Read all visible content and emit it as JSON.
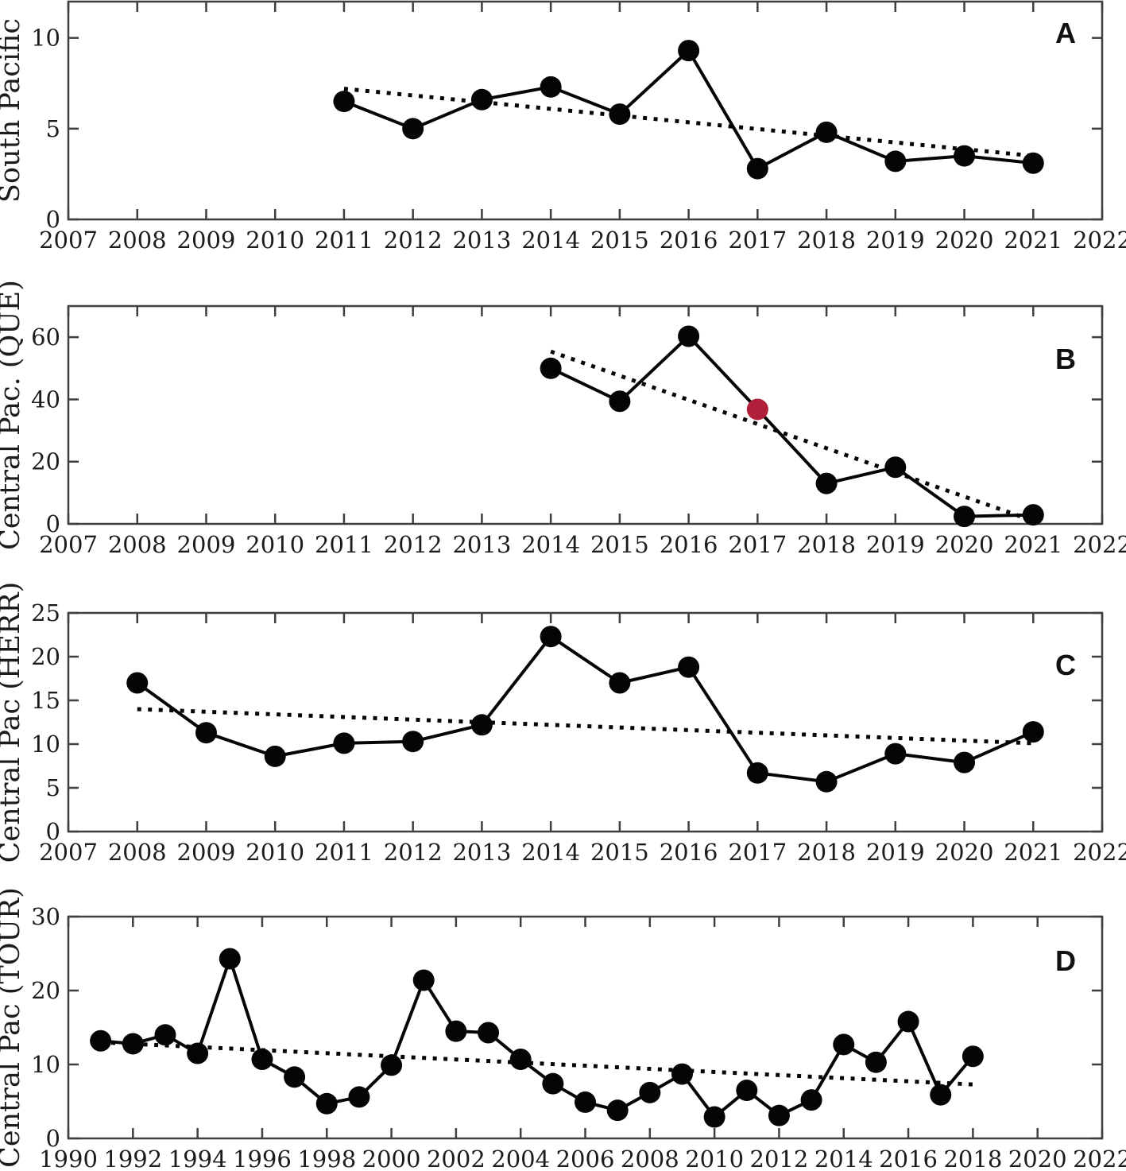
{
  "figure": {
    "background": "#ffffff",
    "axis_color": "#3f3f3f",
    "text_color": "#1c1c1c",
    "series_color": "#050505",
    "trend_color": "#050505",
    "highlight_color": "#B21F3A"
  },
  "chart_data": [
    {
      "type": "line",
      "panel_label": "A",
      "ylabel": "South Pacific",
      "xlabel": "",
      "xlim": [
        2007,
        2022
      ],
      "ylim": [
        0,
        12
      ],
      "xticks": [
        2007,
        2008,
        2009,
        2010,
        2011,
        2012,
        2013,
        2014,
        2015,
        2016,
        2017,
        2018,
        2019,
        2020,
        2021,
        2022
      ],
      "yticks": [
        0,
        5,
        10
      ],
      "grid": false,
      "x": [
        2011,
        2012,
        2013,
        2014,
        2015,
        2016,
        2017,
        2018,
        2019,
        2020,
        2021
      ],
      "values": [
        6.5,
        5.0,
        6.6,
        7.3,
        5.8,
        9.3,
        2.8,
        4.8,
        3.2,
        3.5,
        3.1
      ],
      "trend": {
        "style": "dotted",
        "x": [
          2011,
          2021
        ],
        "y": [
          7.2,
          3.5
        ]
      },
      "highlight_point": null
    },
    {
      "type": "line",
      "panel_label": "B",
      "ylabel": "Central Pac. (QUE)",
      "xlabel": "",
      "xlim": [
        2007,
        2022
      ],
      "ylim": [
        0,
        70
      ],
      "xticks": [
        2007,
        2008,
        2009,
        2010,
        2011,
        2012,
        2013,
        2014,
        2015,
        2016,
        2017,
        2018,
        2019,
        2020,
        2021,
        2022
      ],
      "yticks": [
        0,
        20,
        40,
        60
      ],
      "grid": false,
      "x": [
        2014,
        2015,
        2016,
        2017,
        2018,
        2019,
        2020,
        2021
      ],
      "values": [
        50.0,
        39.4,
        60.3,
        36.8,
        13.0,
        18.2,
        2.4,
        2.9
      ],
      "trend": {
        "style": "dotted",
        "x": [
          2014,
          2021
        ],
        "y": [
          55.4,
          1.0
        ]
      },
      "highlight_point": {
        "x": 2017,
        "y": 36.8
      }
    },
    {
      "type": "line",
      "panel_label": "C",
      "ylabel": "Central Pac (HERR)",
      "xlabel": "",
      "xlim": [
        2007,
        2022
      ],
      "ylim": [
        0,
        25
      ],
      "xticks": [
        2007,
        2008,
        2009,
        2010,
        2011,
        2012,
        2013,
        2014,
        2015,
        2016,
        2017,
        2018,
        2019,
        2020,
        2021,
        2022
      ],
      "yticks": [
        0,
        5,
        10,
        15,
        20,
        25
      ],
      "grid": false,
      "x": [
        2008,
        2009,
        2010,
        2011,
        2012,
        2013,
        2014,
        2015,
        2016,
        2017,
        2018,
        2019,
        2020,
        2021
      ],
      "values": [
        17.0,
        11.3,
        8.6,
        10.1,
        10.3,
        12.2,
        22.3,
        17.0,
        18.8,
        6.7,
        5.7,
        8.9,
        7.9,
        11.4
      ],
      "trend": {
        "style": "dotted",
        "x": [
          2008,
          2021
        ],
        "y": [
          14.0,
          10.1
        ]
      },
      "highlight_point": null
    },
    {
      "type": "line",
      "panel_label": "D",
      "ylabel": "Central Pac (TOUR)",
      "xlabel": "",
      "xlim": [
        1990,
        2022
      ],
      "ylim": [
        0,
        30
      ],
      "xticks": [
        1990,
        1992,
        1994,
        1996,
        1998,
        2000,
        2002,
        2004,
        2006,
        2008,
        2010,
        2012,
        2014,
        2016,
        2018,
        2020,
        2022
      ],
      "yticks": [
        0,
        10,
        20,
        30
      ],
      "grid": false,
      "x": [
        1991,
        1992,
        1993,
        1994,
        1995,
        1996,
        1997,
        1998,
        1999,
        2000,
        2001,
        2002,
        2003,
        2004,
        2005,
        2006,
        2007,
        2008,
        2009,
        2010,
        2011,
        2012,
        2013,
        2014,
        2015,
        2016,
        2017,
        2018
      ],
      "values": [
        13.2,
        12.8,
        14.0,
        11.5,
        24.3,
        10.7,
        8.3,
        4.7,
        5.6,
        9.9,
        21.4,
        14.5,
        14.3,
        10.7,
        7.4,
        4.9,
        3.8,
        6.2,
        8.7,
        2.9,
        6.5,
        3.1,
        5.2,
        12.7,
        10.3,
        15.8,
        5.9,
        11.1
      ],
      "trend": {
        "style": "dotted",
        "x": [
          1991,
          2018
        ],
        "y": [
          13.0,
          7.3
        ]
      },
      "highlight_point": null
    }
  ]
}
